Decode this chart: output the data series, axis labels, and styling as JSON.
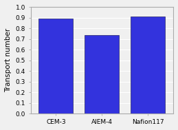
{
  "categories": [
    "CEM-3",
    "AIEM-4",
    "Nafion117"
  ],
  "values": [
    0.89,
    0.74,
    0.91
  ],
  "bar_color": "#3333dd",
  "bar_edge_color": "#222266",
  "bar_edge_width": 0.5,
  "ylabel": "Transport number",
  "ylim": [
    0.0,
    1.0
  ],
  "yticks": [
    0.0,
    0.1,
    0.2,
    0.3,
    0.4,
    0.5,
    0.6,
    0.7,
    0.8,
    0.9,
    1.0
  ],
  "tick_fontsize": 6.5,
  "label_fontsize": 7.5,
  "bar_width": 0.75,
  "background_color": "#f0f0f0",
  "grid_color": "#ffffff",
  "grid_linewidth": 0.8,
  "spine_color": "#aaaaaa",
  "spine_linewidth": 0.8
}
